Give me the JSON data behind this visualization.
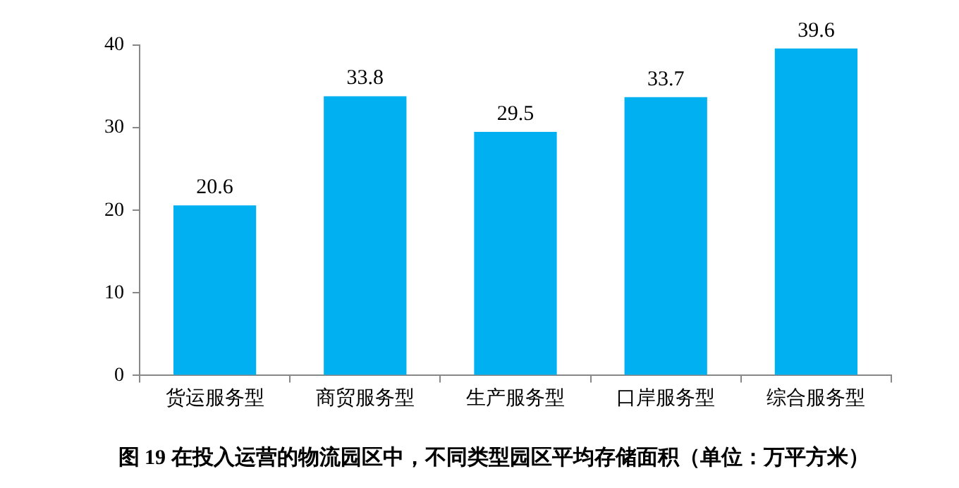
{
  "chart_data": {
    "type": "bar",
    "title": "图 19 在投入运营的物流园区中，不同类型园区平均存储面积（单位：万平方米）",
    "categories": [
      "货运服务型",
      "商贸服务型",
      "生产服务型",
      "口岸服务型",
      "综合服务型"
    ],
    "values": [
      20.6,
      33.8,
      29.5,
      33.7,
      39.6
    ],
    "color": "#00b0f0",
    "ylim": [
      0,
      40
    ],
    "yticks": [
      0,
      10,
      20,
      30,
      40
    ],
    "grid": false,
    "legend": false,
    "data_labels": true
  }
}
